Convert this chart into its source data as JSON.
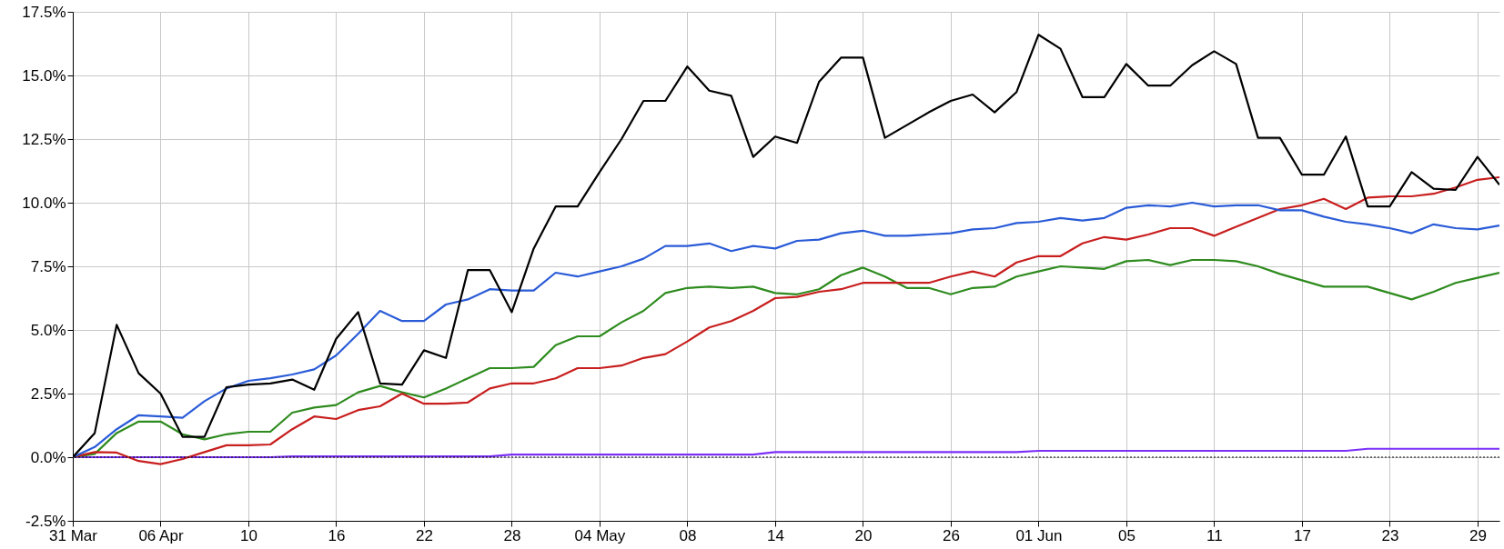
{
  "chart_data": {
    "type": "line",
    "categories": [
      "31 Mar",
      null,
      null,
      null,
      "06 Apr",
      null,
      null,
      null,
      "10",
      null,
      null,
      null,
      "16",
      null,
      null,
      null,
      "22",
      null,
      null,
      null,
      "28",
      null,
      null,
      null,
      "04 May",
      null,
      null,
      null,
      "08",
      null,
      null,
      null,
      "14",
      null,
      null,
      null,
      "20",
      null,
      null,
      null,
      "26",
      null,
      null,
      null,
      "01 Jun",
      null,
      null,
      null,
      "05",
      null,
      null,
      null,
      "11",
      null,
      null,
      null,
      "17",
      null,
      null,
      null,
      "23",
      null,
      null,
      null,
      "29",
      null
    ],
    "series": [
      {
        "color": "#7b2ff7",
        "values": [
          0,
          0,
          0,
          0,
          0,
          0,
          0,
          0,
          0,
          0,
          0.03,
          0.03,
          0.03,
          0.03,
          0.03,
          0.03,
          0.03,
          0.03,
          0.03,
          0.03,
          0.1,
          0.1,
          0.1,
          0.1,
          0.1,
          0.1,
          0.1,
          0.1,
          0.1,
          0.1,
          0.1,
          0.1,
          0.2,
          0.2,
          0.2,
          0.2,
          0.2,
          0.2,
          0.2,
          0.2,
          0.2,
          0.2,
          0.2,
          0.2,
          0.25,
          0.25,
          0.25,
          0.25,
          0.25,
          0.25,
          0.25,
          0.25,
          0.25,
          0.25,
          0.25,
          0.25,
          0.25,
          0.25,
          0.25,
          0.33,
          0.33,
          0.33,
          0.33,
          0.33,
          0.33,
          0.33
        ]
      },
      {
        "color": "#2e8b1e",
        "values": [
          0,
          0.13,
          0.95,
          1.4,
          1.4,
          0.9,
          0.7,
          0.9,
          1.0,
          1.0,
          1.75,
          1.95,
          2.05,
          2.55,
          2.8,
          2.55,
          2.35,
          2.7,
          3.1,
          3.5,
          3.5,
          3.55,
          4.4,
          4.75,
          4.75,
          5.3,
          5.75,
          6.45,
          6.65,
          6.7,
          6.65,
          6.7,
          6.45,
          6.4,
          6.6,
          7.15,
          7.45,
          7.1,
          6.65,
          6.65,
          6.4,
          6.65,
          6.7,
          7.1,
          7.3,
          7.5,
          7.45,
          7.4,
          7.7,
          7.75,
          7.55,
          7.75,
          7.75,
          7.7,
          7.5,
          7.2,
          6.95,
          6.7,
          6.7,
          6.7,
          6.45,
          6.2,
          6.5,
          6.85,
          7.05,
          7.25
        ]
      },
      {
        "color": "#c81e1e",
        "values": [
          0,
          0.2,
          0.18,
          -0.15,
          -0.27,
          -0.07,
          0.2,
          0.47,
          0.47,
          0.5,
          1.1,
          1.6,
          1.5,
          1.85,
          2.0,
          2.5,
          2.1,
          2.1,
          2.15,
          2.7,
          2.9,
          2.9,
          3.1,
          3.5,
          3.5,
          3.6,
          3.9,
          4.05,
          4.55,
          5.1,
          5.35,
          5.75,
          6.25,
          6.3,
          6.5,
          6.6,
          6.85,
          6.85,
          6.85,
          6.85,
          7.1,
          7.3,
          7.1,
          7.65,
          7.9,
          7.9,
          8.4,
          8.65,
          8.55,
          8.75,
          9.0,
          9.0,
          8.7,
          9.05,
          9.4,
          9.75,
          9.9,
          10.15,
          9.75,
          10.2,
          10.25,
          10.25,
          10.35,
          10.6,
          10.9,
          11.0
        ]
      },
      {
        "color": "#2a5bd7",
        "values": [
          0,
          0.4,
          1.1,
          1.65,
          1.6,
          1.55,
          2.2,
          2.7,
          3.0,
          3.1,
          3.25,
          3.45,
          4.0,
          4.85,
          5.75,
          5.35,
          5.35,
          6.0,
          6.2,
          6.6,
          6.55,
          6.55,
          7.25,
          7.1,
          7.3,
          7.5,
          7.8,
          8.3,
          8.3,
          8.4,
          8.1,
          8.3,
          8.2,
          8.5,
          8.55,
          8.8,
          8.9,
          8.7,
          8.7,
          8.75,
          8.8,
          8.95,
          9.0,
          9.2,
          9.25,
          9.4,
          9.3,
          9.4,
          9.8,
          9.9,
          9.85,
          10.0,
          9.85,
          9.9,
          9.9,
          9.7,
          9.7,
          9.45,
          9.25,
          9.15,
          9.0,
          8.8,
          9.15,
          9.0,
          8.95,
          9.1
        ]
      },
      {
        "color": "#000000",
        "values": [
          0,
          0.95,
          5.2,
          3.3,
          2.5,
          0.8,
          0.8,
          2.75,
          2.85,
          2.9,
          3.05,
          2.65,
          4.65,
          5.7,
          2.9,
          2.85,
          4.2,
          3.9,
          7.35,
          7.35,
          5.7,
          8.2,
          9.85,
          9.85,
          11.2,
          12.5,
          14.0,
          14.0,
          15.35,
          14.4,
          14.2,
          11.8,
          12.6,
          12.35,
          14.75,
          15.7,
          15.7,
          12.55,
          13.05,
          13.55,
          14.0,
          14.25,
          13.55,
          14.35,
          16.6,
          16.05,
          14.15,
          14.15,
          15.45,
          14.6,
          14.6,
          15.4,
          15.95,
          15.45,
          12.55,
          12.55,
          11.1,
          11.1,
          12.6,
          9.85,
          9.85,
          11.2,
          10.55,
          10.5,
          11.8,
          10.7
        ]
      }
    ],
    "ylim": [
      -2.5,
      17.5
    ],
    "yticks": [
      {
        "value": -2.5,
        "label": "-2.5%"
      },
      {
        "value": 0,
        "label": "0.0%"
      },
      {
        "value": 2.5,
        "label": "2.5%"
      },
      {
        "value": 5,
        "label": "5.0%"
      },
      {
        "value": 7.5,
        "label": "7.5%"
      },
      {
        "value": 10,
        "label": "10.0%"
      },
      {
        "value": 12.5,
        "label": "12.5%"
      },
      {
        "value": 15,
        "label": "15.0%"
      },
      {
        "value": 17.5,
        "label": "17.5%"
      }
    ],
    "ref_lines": [
      {
        "axis": "y",
        "value": 0,
        "color": "#000000",
        "line_style": "dotted"
      }
    ],
    "grid": true
  }
}
